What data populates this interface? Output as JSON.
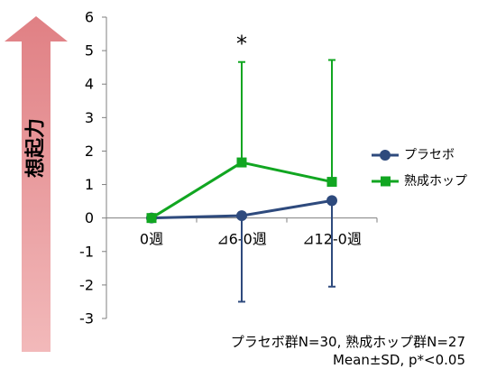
{
  "chart_data": {
    "type": "line",
    "categories": [
      "0週",
      "⊿6-0週",
      "⊿12-0週"
    ],
    "ylim": [
      -3,
      6
    ],
    "yticks": [
      6,
      5,
      4,
      3,
      2,
      1,
      0,
      -1,
      -2,
      -3
    ],
    "ylabel": "想起力",
    "series": [
      {
        "name": "プラセボ",
        "color": "#2E4A7D",
        "marker": "circle",
        "values": [
          0,
          0.07,
          0.52
        ],
        "error_upper": [
          null,
          null,
          null
        ],
        "error_lower": [
          null,
          2.57,
          2.57
        ]
      },
      {
        "name": "熟成ホップ",
        "color": "#11A621",
        "marker": "square",
        "values": [
          0,
          1.66,
          1.08
        ],
        "error_upper": [
          null,
          3.0,
          3.64
        ],
        "error_lower": [
          null,
          null,
          null
        ]
      }
    ],
    "annotations": [
      {
        "text": "*",
        "category_index": 1,
        "y": 5.2
      }
    ],
    "legend_position": "right",
    "grid": false,
    "footnote_line1": "プラセボ群N=30, 熟成ホップ群N=27",
    "footnote_line2": "Mean±SD, p*<0.05",
    "arrow_color": "#E89396"
  }
}
